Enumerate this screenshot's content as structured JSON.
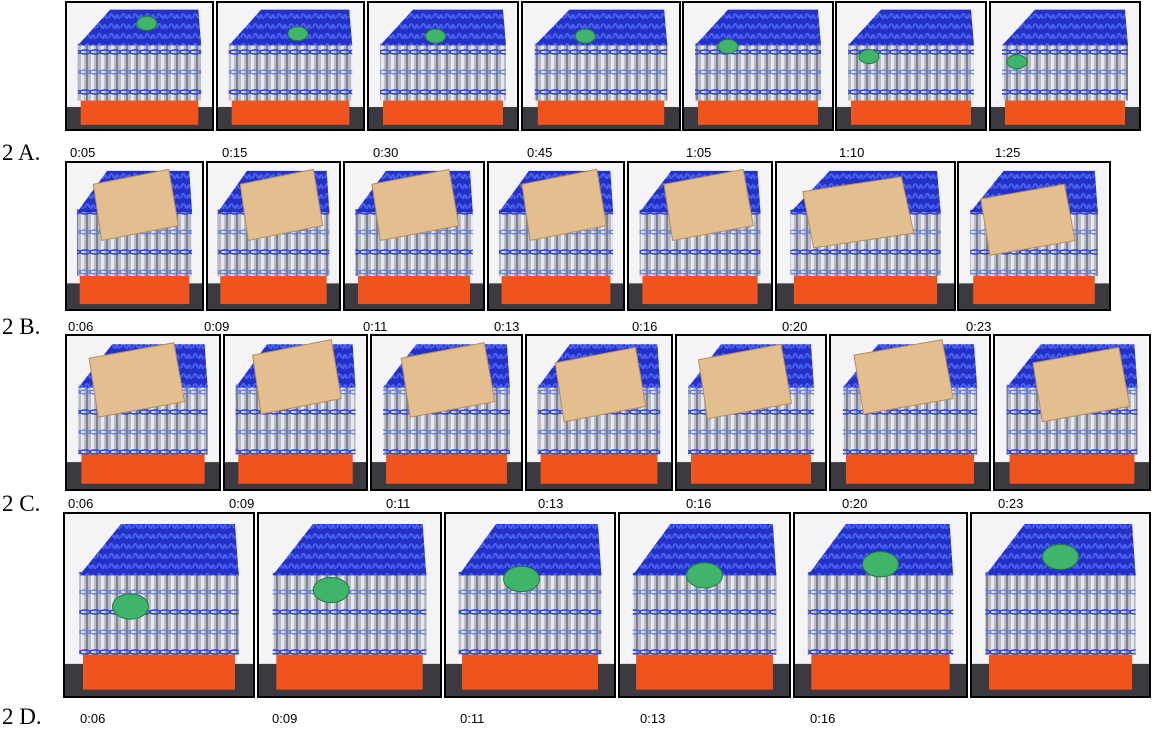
{
  "rows": [
    {
      "label": "2 A.",
      "times": [
        "0:05",
        "0:15",
        "0:30",
        "0:45",
        "1:05",
        "1:10",
        "1:25"
      ]
    },
    {
      "label": "2 B.",
      "times": [
        "0:06",
        "0:09",
        "0:11",
        "0:13",
        "0:16",
        "0:20",
        "0:23"
      ]
    },
    {
      "label": "2 C.",
      "times": [
        "0:06",
        "0:09",
        "0:11",
        "0:13",
        "0:16",
        "0:20",
        "0:23"
      ]
    },
    {
      "label": "2 D.",
      "times": [
        "0:06",
        "0:09",
        "0:11",
        "0:13",
        "0:16"
      ]
    }
  ]
}
